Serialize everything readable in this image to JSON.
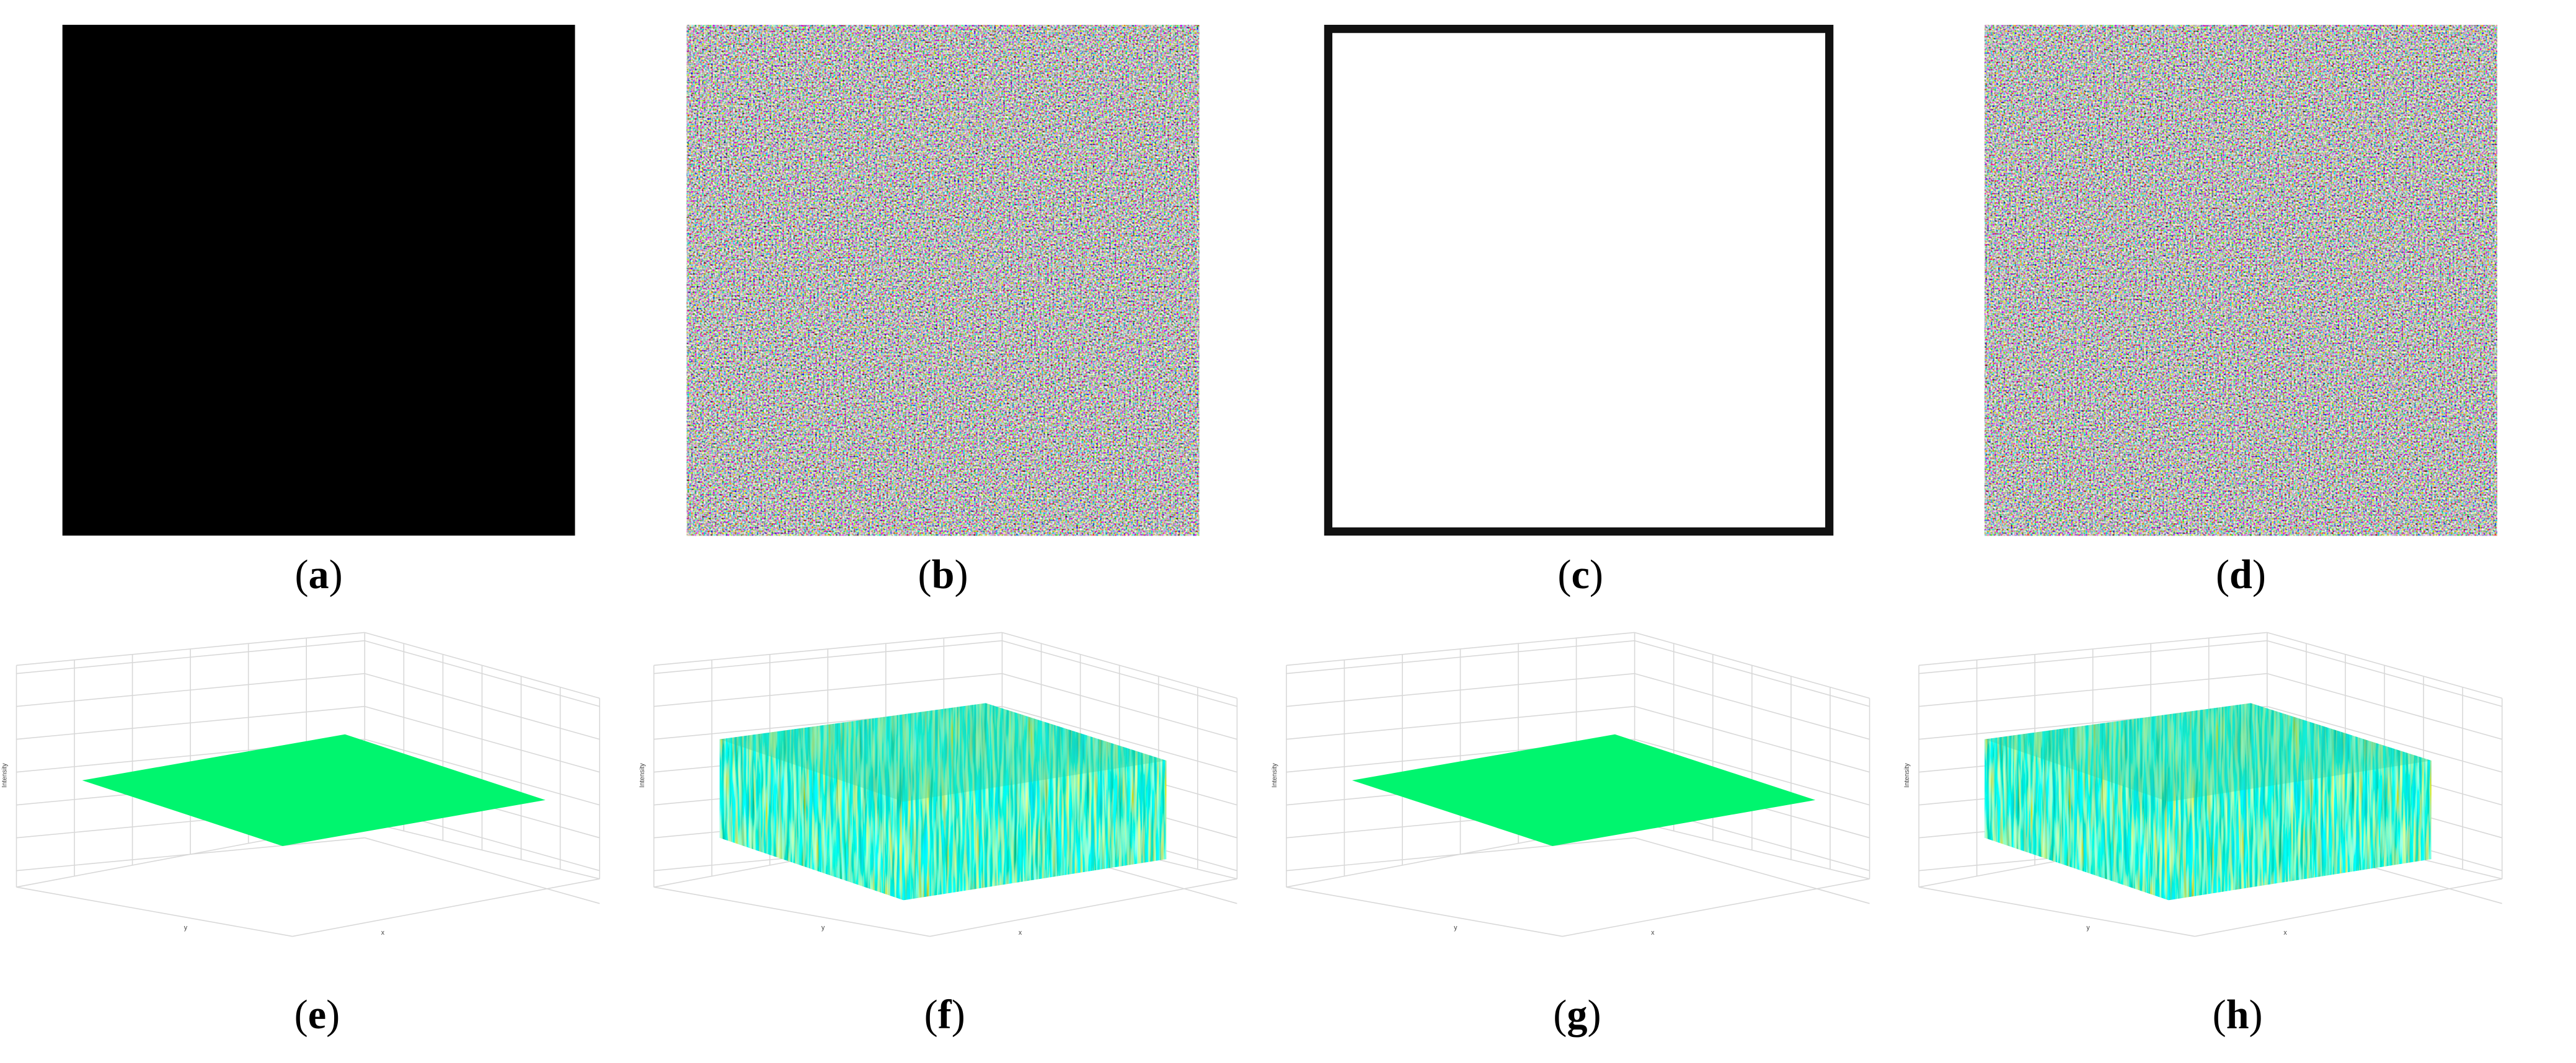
{
  "panels": [
    {
      "label": "(a)"
    },
    {
      "label": "(b)"
    },
    {
      "label": "(c)"
    },
    {
      "label": "(d)"
    }
  ],
  "plots": [
    {
      "label": "(e)",
      "x_label": "x",
      "y_label": "y",
      "z_label": "Intensity"
    },
    {
      "label": "(f)",
      "x_label": "x",
      "y_label": "y",
      "z_label": "Intensity"
    },
    {
      "label": "(g)",
      "x_label": "x",
      "y_label": "y",
      "z_label": "Intensity"
    },
    {
      "label": "(h)",
      "x_label": "x",
      "y_label": "y",
      "z_label": "Intensity"
    }
  ]
}
